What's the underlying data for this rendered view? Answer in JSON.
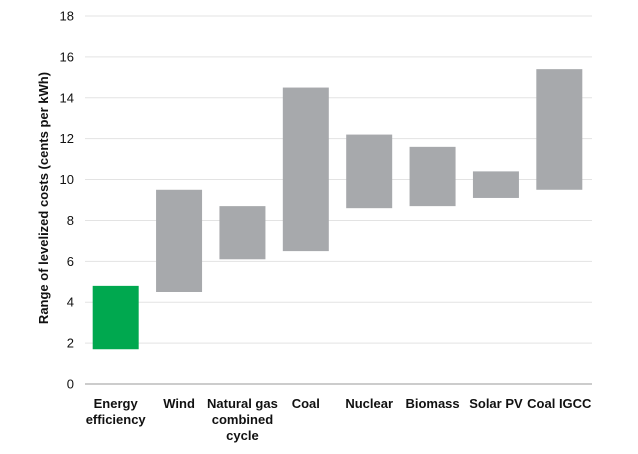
{
  "chart_data": {
    "type": "bar",
    "subtype": "floating-range",
    "title": "",
    "xlabel": "",
    "ylabel": "Range of levelized costs (cents per kWh)",
    "ylim": [
      0,
      18
    ],
    "yticks": [
      0,
      2,
      4,
      6,
      8,
      10,
      12,
      14,
      16,
      18
    ],
    "grid": true,
    "categories": [
      [
        "Energy",
        "efficiency"
      ],
      [
        "Wind"
      ],
      [
        "Natural gas",
        "combined",
        "cycle"
      ],
      [
        "Coal"
      ],
      [
        "Nuclear"
      ],
      [
        "Biomass"
      ],
      [
        "Solar PV"
      ],
      [
        "Coal IGCC"
      ]
    ],
    "ranges": [
      [
        1.7,
        4.8
      ],
      [
        4.5,
        9.5
      ],
      [
        6.1,
        8.7
      ],
      [
        6.5,
        14.5
      ],
      [
        8.6,
        12.2
      ],
      [
        8.7,
        11.6
      ],
      [
        9.1,
        10.4
      ],
      [
        9.5,
        15.4
      ]
    ],
    "colors": [
      "#00a84f",
      "#a7a9ac",
      "#a7a9ac",
      "#a7a9ac",
      "#a7a9ac",
      "#a7a9ac",
      "#a7a9ac",
      "#a7a9ac"
    ],
    "grid_color": "#e3e3e3",
    "axis_color": "#9a9a9a"
  }
}
